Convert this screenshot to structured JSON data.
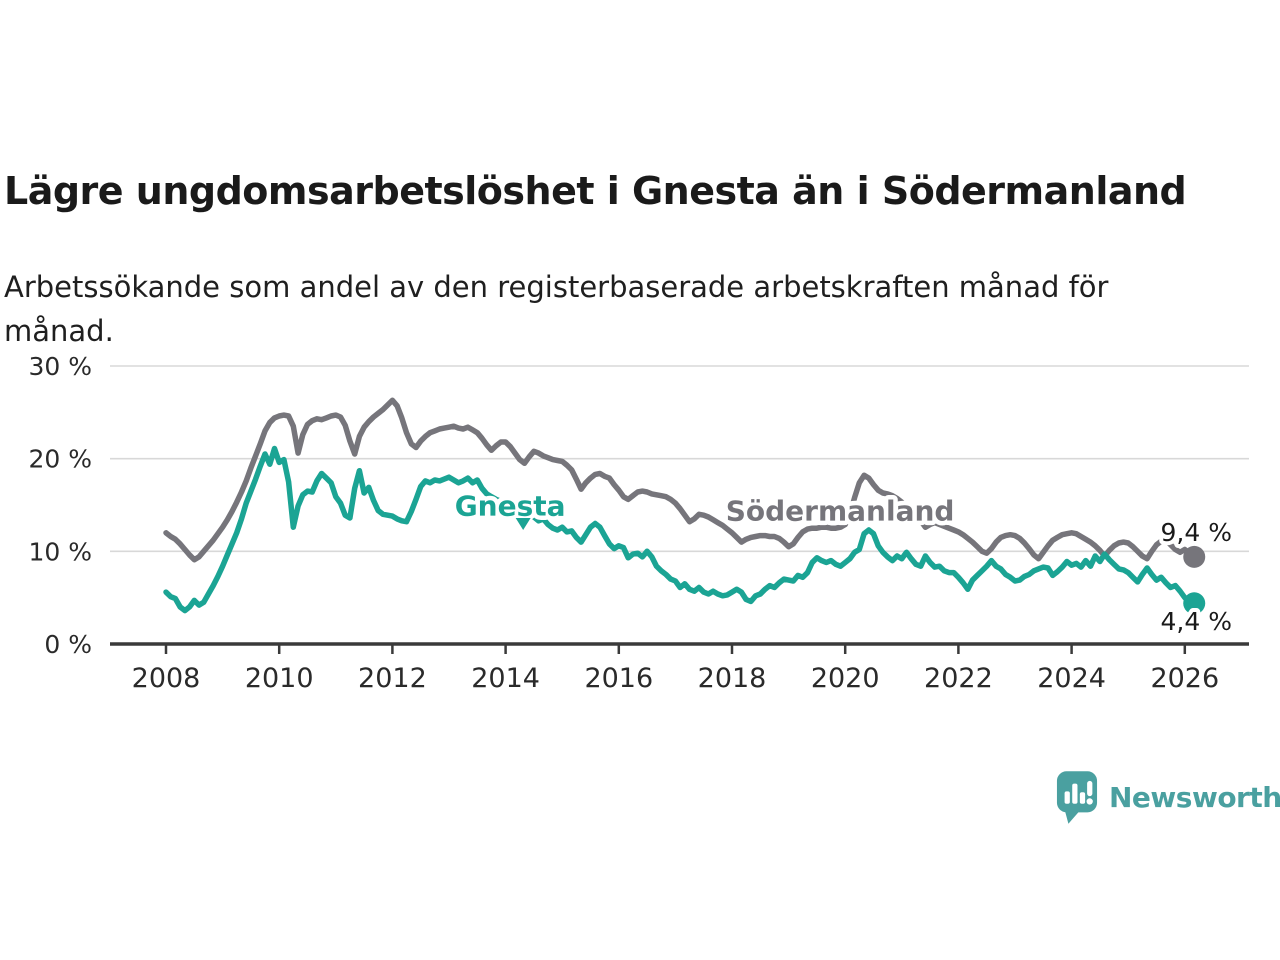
{
  "header": {
    "title": "Lägre ungdomsarbetslöshet i Gnesta än i Södermanland",
    "subtitle": "Arbetssökande som andel av den registerbaserade arbetskraften månad för\nmånad."
  },
  "footer": {
    "brand": "Newsworthy",
    "logo_icon": "speech-bubble-bar-chart-icon"
  },
  "colors": {
    "gnesta": "#1ba494",
    "sodermanland": "#76757b",
    "axis": "#3a3a3a",
    "grid": "#d8d8d8",
    "text": "#2a2a2a",
    "value_label": "#1a1a1a",
    "brand": "#4aa0a0",
    "background": "#ffffff"
  },
  "chart_data": {
    "type": "line",
    "title": "Lägre ungdomsarbetslöshet i Gnesta än i Södermanland",
    "subtitle": "Arbetssökande som andel av den registerbaserade arbetskraften månad för månad.",
    "xlabel": "",
    "ylabel": "",
    "grid": true,
    "legend_position": "inline-labels",
    "ylim": [
      0,
      30
    ],
    "xlim": [
      2007.0,
      2027.25
    ],
    "x_unit": "year-month",
    "x_start": 2008.0,
    "x_step": 0.0833333,
    "y_ticks": [
      {
        "v": 0,
        "label": "0 %"
      },
      {
        "v": 10,
        "label": "10 %"
      },
      {
        "v": 20,
        "label": "20 %"
      },
      {
        "v": 30,
        "label": "30 %"
      }
    ],
    "x_ticks": [
      {
        "v": 2008,
        "label": "2008"
      },
      {
        "v": 2010,
        "label": "2010"
      },
      {
        "v": 2012,
        "label": "2012"
      },
      {
        "v": 2014,
        "label": "2014"
      },
      {
        "v": 2016,
        "label": "2016"
      },
      {
        "v": 2018,
        "label": "2018"
      },
      {
        "v": 2020,
        "label": "2020"
      },
      {
        "v": 2022,
        "label": "2022"
      },
      {
        "v": 2024,
        "label": "2024"
      },
      {
        "v": 2026,
        "label": "2026"
      }
    ],
    "series": [
      {
        "name": "Södermanland",
        "color_key": "sodermanland",
        "end_label": "9,4 %",
        "end_value": 9.4,
        "end_label_side": "above",
        "values": [
          12.0,
          11.6,
          11.3,
          10.8,
          10.2,
          9.6,
          9.1,
          9.4,
          10.0,
          10.6,
          11.2,
          11.9,
          12.6,
          13.4,
          14.3,
          15.3,
          16.4,
          17.6,
          19.0,
          20.3,
          21.6,
          23.0,
          23.9,
          24.4,
          24.6,
          24.7,
          24.6,
          23.5,
          20.6,
          22.6,
          23.7,
          24.1,
          24.3,
          24.2,
          24.4,
          24.6,
          24.7,
          24.5,
          23.6,
          21.9,
          20.5,
          22.4,
          23.4,
          24.0,
          24.5,
          24.9,
          25.3,
          25.8,
          26.3,
          25.7,
          24.4,
          22.8,
          21.6,
          21.2,
          21.9,
          22.4,
          22.8,
          23.0,
          23.2,
          23.3,
          23.4,
          23.5,
          23.3,
          23.2,
          23.4,
          23.1,
          22.8,
          22.2,
          21.5,
          20.9,
          21.4,
          21.8,
          21.8,
          21.3,
          20.6,
          19.9,
          19.5,
          20.2,
          20.8,
          20.6,
          20.3,
          20.1,
          19.9,
          19.8,
          19.7,
          19.3,
          18.8,
          17.8,
          16.7,
          17.4,
          17.9,
          18.3,
          18.4,
          18.1,
          17.9,
          17.2,
          16.6,
          15.9,
          15.6,
          16.0,
          16.4,
          16.5,
          16.4,
          16.2,
          16.1,
          16.0,
          15.9,
          15.6,
          15.2,
          14.6,
          13.9,
          13.2,
          13.5,
          14.0,
          13.9,
          13.7,
          13.4,
          13.1,
          12.8,
          12.4,
          12.0,
          11.5,
          11.0,
          11.3,
          11.5,
          11.6,
          11.7,
          11.7,
          11.6,
          11.6,
          11.4,
          11.0,
          10.5,
          10.8,
          11.5,
          12.1,
          12.4,
          12.5,
          12.5,
          12.6,
          12.6,
          12.5,
          12.5,
          12.6,
          12.9,
          14.0,
          15.8,
          17.4,
          18.2,
          17.9,
          17.2,
          16.6,
          16.3,
          16.2,
          16.0,
          15.7,
          15.3,
          14.8,
          14.3,
          13.8,
          13.3,
          12.6,
          12.9,
          13.1,
          12.9,
          12.7,
          12.5,
          12.3,
          12.1,
          11.8,
          11.4,
          11.0,
          10.5,
          10.0,
          9.8,
          10.3,
          11.0,
          11.5,
          11.7,
          11.8,
          11.7,
          11.4,
          10.9,
          10.3,
          9.6,
          9.2,
          9.9,
          10.6,
          11.2,
          11.5,
          11.8,
          11.9,
          12.0,
          11.9,
          11.6,
          11.3,
          11.0,
          10.6,
          10.1,
          9.5,
          10.1,
          10.6,
          10.9,
          11.0,
          10.9,
          10.5,
          10.0,
          9.5,
          9.2,
          10.0,
          10.7,
          11.1,
          11.2,
          10.7,
          10.2,
          9.9,
          10.2,
          9.7,
          9.4
        ]
      },
      {
        "name": "Gnesta",
        "color_key": "gnesta",
        "end_label": "4,4 %",
        "end_value": 4.4,
        "end_label_side": "below",
        "values": [
          5.6,
          5.1,
          4.9,
          4.0,
          3.6,
          4.0,
          4.7,
          4.2,
          4.5,
          5.4,
          6.3,
          7.3,
          8.4,
          9.6,
          10.8,
          12.0,
          13.5,
          15.2,
          16.5,
          17.8,
          19.2,
          20.5,
          19.4,
          21.1,
          19.6,
          19.9,
          17.5,
          12.6,
          14.9,
          16.1,
          16.5,
          16.4,
          17.6,
          18.4,
          17.9,
          17.4,
          15.9,
          15.2,
          13.9,
          13.6,
          16.8,
          18.7,
          16.3,
          16.9,
          15.5,
          14.4,
          14.0,
          13.9,
          13.8,
          13.5,
          13.3,
          13.2,
          14.3,
          15.6,
          17.0,
          17.6,
          17.4,
          17.7,
          17.6,
          17.8,
          18.0,
          17.7,
          17.4,
          17.6,
          17.9,
          17.4,
          17.7,
          16.8,
          16.2,
          15.9,
          15.6,
          15.4,
          15.1,
          14.9,
          14.7,
          14.2,
          13.9,
          14.3,
          13.7,
          13.3,
          13.5,
          12.9,
          12.5,
          12.3,
          12.6,
          12.1,
          12.2,
          11.5,
          11.0,
          11.8,
          12.6,
          13.0,
          12.6,
          11.7,
          10.8,
          10.3,
          10.6,
          10.4,
          9.3,
          9.7,
          9.8,
          9.4,
          10.0,
          9.4,
          8.4,
          7.9,
          7.5,
          7.0,
          6.8,
          6.1,
          6.5,
          5.9,
          5.7,
          6.1,
          5.6,
          5.4,
          5.7,
          5.4,
          5.2,
          5.3,
          5.6,
          5.9,
          5.6,
          4.8,
          4.6,
          5.2,
          5.4,
          5.9,
          6.3,
          6.1,
          6.6,
          7.0,
          6.9,
          6.8,
          7.4,
          7.2,
          7.7,
          8.8,
          9.3,
          9.0,
          8.8,
          9.0,
          8.6,
          8.4,
          8.8,
          9.2,
          9.9,
          10.2,
          11.9,
          12.3,
          11.9,
          10.6,
          9.9,
          9.4,
          9.0,
          9.5,
          9.2,
          9.9,
          9.2,
          8.6,
          8.4,
          9.5,
          8.8,
          8.3,
          8.4,
          7.9,
          7.7,
          7.7,
          7.2,
          6.6,
          5.9,
          6.9,
          7.4,
          7.9,
          8.4,
          9.0,
          8.4,
          8.1,
          7.5,
          7.2,
          6.8,
          6.9,
          7.3,
          7.5,
          7.9,
          8.1,
          8.3,
          8.2,
          7.4,
          7.8,
          8.3,
          8.9,
          8.5,
          8.7,
          8.3,
          9.0,
          8.4,
          9.5,
          8.9,
          9.7,
          9.1,
          8.6,
          8.1,
          8.0,
          7.7,
          7.2,
          6.7,
          7.5,
          8.2,
          7.5,
          6.9,
          7.2,
          6.6,
          6.1,
          6.3,
          5.7,
          5.0,
          4.7,
          4.4
        ]
      }
    ],
    "series_labels": [
      {
        "text": "Gnesta",
        "series": "Gnesta",
        "x": 2014.08,
        "y": 14.9,
        "marker": {
          "x": 2014.31,
          "y": 12.3
        }
      },
      {
        "text": "Södermanland",
        "series": "Södermanland",
        "x": 2019.91,
        "y": 14.35,
        "marker": null
      }
    ]
  }
}
